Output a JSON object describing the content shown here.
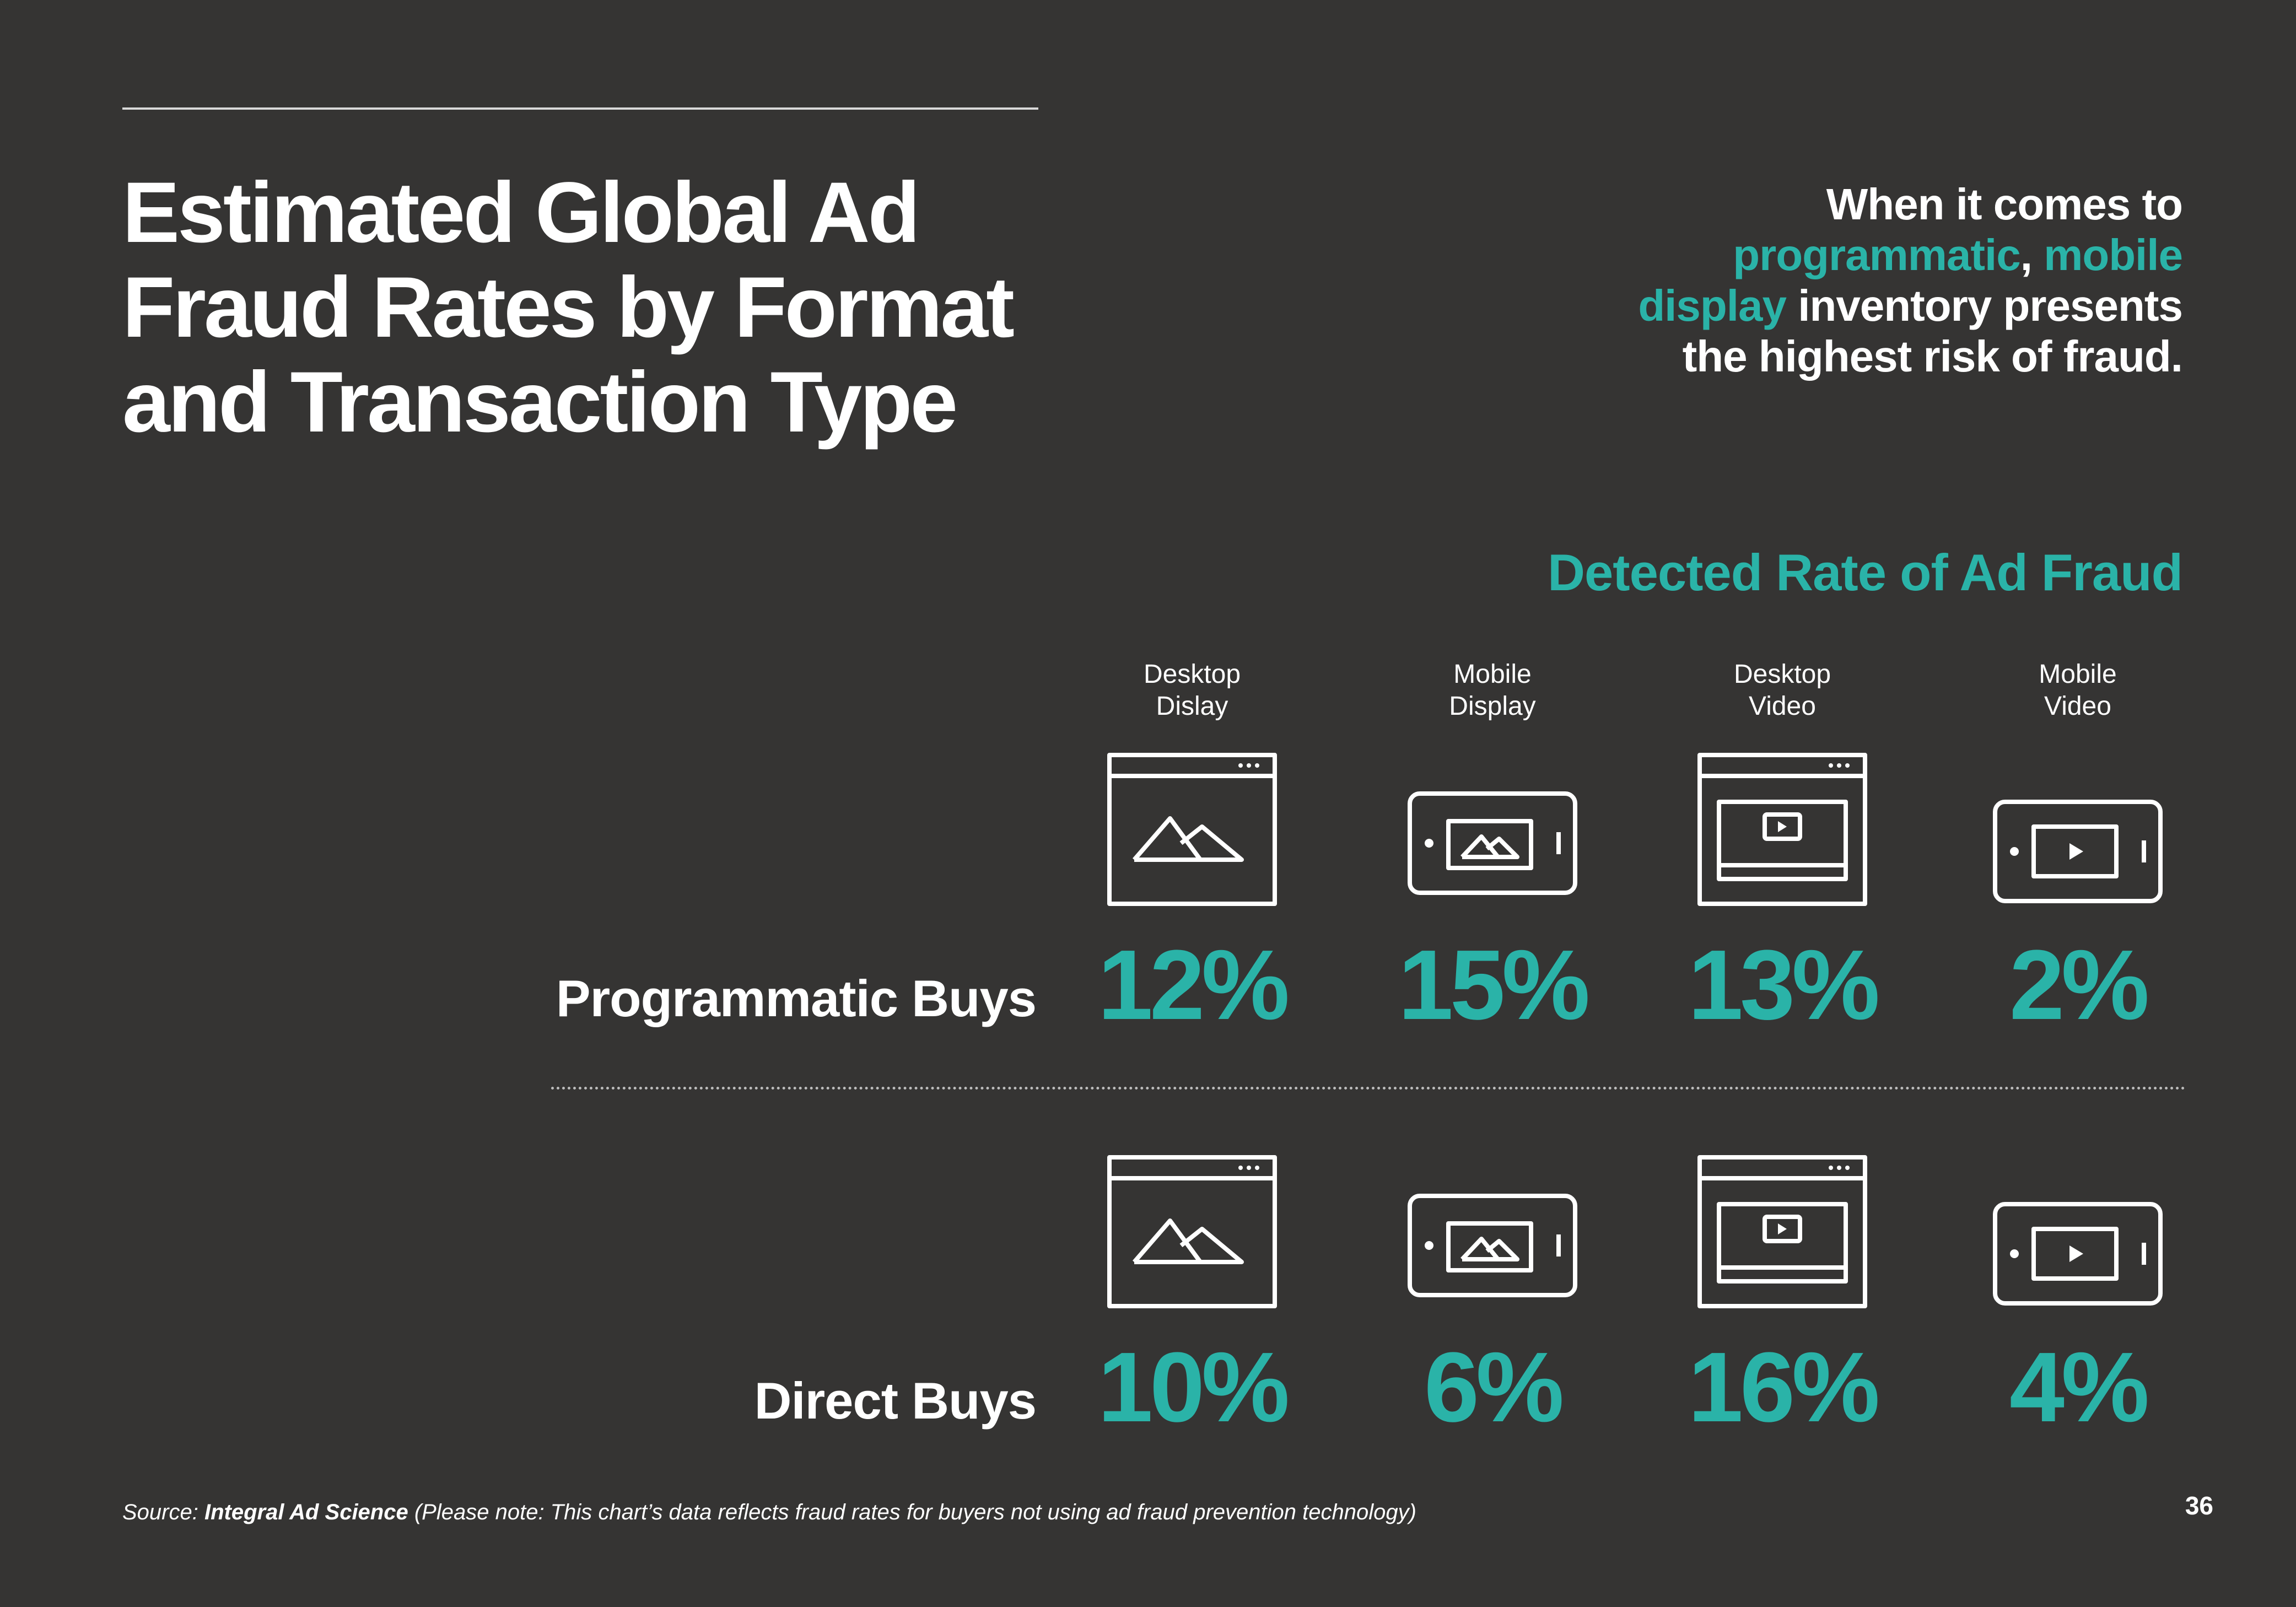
{
  "page": {
    "title": "Estimated Global Ad Fraud Rates by Format and Transaction Type",
    "callout": {
      "line1": "When it comes to",
      "hl_programmatic": "programmatic",
      "comma": ",",
      "hl_mobile": "mobile",
      "hl_display": "display",
      "rest1": "inventory presents",
      "line4": "the highest risk of fraud."
    },
    "source_prefix": "Source:",
    "source_name": "Integral Ad Science",
    "source_note": "(Please note: This chart’s data reflects fraud rates for buyers not using ad fraud prevention technology)",
    "page_number": "36"
  },
  "colors": {
    "background": "#353433",
    "accent": "#2ab3a8",
    "text": "#ffffff"
  },
  "icons": [
    "desktop-display-icon",
    "mobile-display-icon",
    "desktop-video-icon",
    "mobile-video-icon"
  ],
  "chart_data": {
    "type": "table",
    "title": "Detected Rate of Ad Fraud",
    "columns": [
      "Desktop\nDislay",
      "Mobile\nDisplay",
      "Desktop\nVideo",
      "Mobile\nVideo"
    ],
    "rows": [
      {
        "label": "Programmatic Buys",
        "values": [
          12,
          15,
          13,
          2
        ],
        "display": [
          "12%",
          "15%",
          "13%",
          "2%"
        ]
      },
      {
        "label": "Direct Buys",
        "values": [
          10,
          6,
          16,
          4
        ],
        "display": [
          "10%",
          "6%",
          "16%",
          "4%"
        ]
      }
    ],
    "unit": "%"
  }
}
